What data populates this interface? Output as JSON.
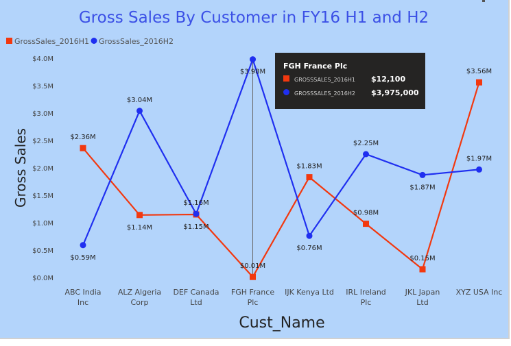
{
  "chart_data": {
    "type": "line",
    "title": "Gross Sales By Customer in FY16 H1 and H2",
    "xlabel": "Cust_Name",
    "ylabel": "Gross Sales",
    "ylim": [
      0,
      4.0
    ],
    "yticks": [
      "$0.0M",
      "$0.5M",
      "$1.0M",
      "$1.5M",
      "$2.0M",
      "$2.5M",
      "$3.0M",
      "$3.5M",
      "$4.0M"
    ],
    "categories": [
      [
        "ABC India",
        "Inc"
      ],
      [
        "ALZ Algeria",
        "Corp"
      ],
      [
        "DEF Canada",
        "Ltd"
      ],
      [
        "FGH France",
        "Plc"
      ],
      [
        "IJK Kenya Ltd"
      ],
      [
        "IRL Ireland",
        "Plc"
      ],
      [
        "JKL Japan",
        "Ltd"
      ],
      [
        "XYZ USA Inc"
      ]
    ],
    "legend_position": "top-left",
    "grid": false,
    "series": [
      {
        "name": "GrossSales_2016H1",
        "color": "#f2380f",
        "marker": "square",
        "values": [
          2.36,
          1.14,
          1.15,
          0.01,
          1.83,
          0.98,
          0.15,
          3.56
        ],
        "labels": [
          "$2.36M",
          "$1.14M",
          "$1.15M",
          "$0.01M",
          "$1.83M",
          "$0.98M",
          "$0.15M",
          "$3.56M"
        ],
        "label_pos": [
          "above",
          "below",
          "below",
          "above",
          "above",
          "above",
          "above",
          "above"
        ]
      },
      {
        "name": "GrossSales_2016H2",
        "color": "#1f2ff0",
        "marker": "circle",
        "values": [
          0.59,
          3.04,
          1.16,
          3.98,
          0.76,
          2.25,
          1.87,
          1.97
        ],
        "labels": [
          "$0.59M",
          "$3.04M",
          "$1.16M",
          "$3.98M",
          "$0.76M",
          "$2.25M",
          "$1.87M",
          "$1.97M"
        ],
        "label_pos": [
          "below",
          "above",
          "above",
          "below",
          "below",
          "above",
          "below",
          "above"
        ]
      }
    ],
    "tooltip": {
      "category": "FGH France Plc",
      "category_index": 3,
      "rows": [
        {
          "label": "GROSSSALES_2016H1",
          "value": "$12,100",
          "color": "#f2380f"
        },
        {
          "label": "GROSSSALES_2016H2",
          "value": "$3,975,000",
          "color": "#1f2ff0"
        }
      ]
    }
  }
}
